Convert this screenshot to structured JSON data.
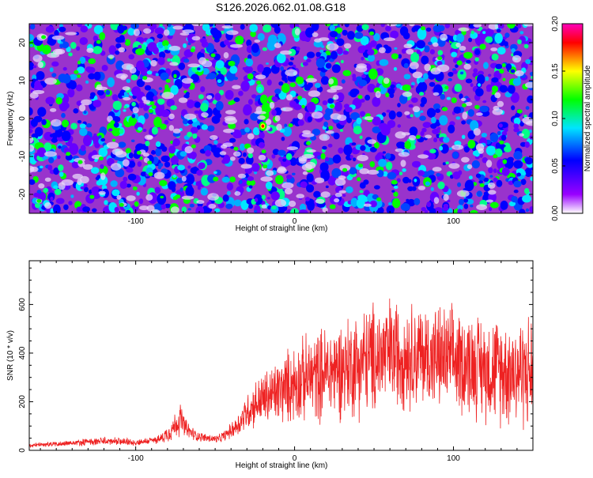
{
  "title": "S126.2026.062.01.08.G18",
  "chart_data": [
    {
      "type": "heatmap",
      "title": "S126.2026.062.01.08.G18",
      "xlabel": "Height of straight line (km)",
      "ylabel": "Frequency (Hz)",
      "xlim": [
        -167,
        150
      ],
      "ylim": [
        -25,
        25
      ],
      "x_ticks": [
        -100,
        0,
        100
      ],
      "y_ticks": [
        -20,
        -10,
        0,
        10,
        20
      ],
      "colorbar": {
        "label": "Normalized spectral amplitude",
        "range": [
          0.0,
          0.2
        ],
        "ticks": [
          "0.00",
          "0.05",
          "0.10",
          "0.15",
          "0.20"
        ],
        "colors": [
          "#ffffff",
          "#9900ff",
          "#0000ff",
          "#00e5ff",
          "#00ff00",
          "#ffff00",
          "#ff0000",
          "#ff00bb"
        ]
      },
      "peak": {
        "x": -20,
        "y": -2,
        "value": 0.2
      },
      "background_color": "#9933cc"
    },
    {
      "type": "line",
      "xlabel": "Height of straight line (km)",
      "ylabel": "SNR (10 * v/v)",
      "xlim": [
        -167,
        150
      ],
      "ylim": [
        0,
        780
      ],
      "x_ticks": [
        -100,
        0,
        100
      ],
      "y_ticks": [
        0,
        200,
        400,
        600
      ],
      "line_color": "#ee2222",
      "series": [
        {
          "name": "SNR",
          "x": [
            -167,
            -140,
            -120,
            -100,
            -85,
            -78,
            -72,
            -68,
            -62,
            -55,
            -48,
            -42,
            -35,
            -30,
            -25,
            -20,
            -10,
            0,
            10,
            20,
            30,
            40,
            50,
            60,
            70,
            80,
            90,
            100,
            110,
            120,
            130,
            140,
            150
          ],
          "y": [
            20,
            30,
            38,
            32,
            45,
            80,
            130,
            85,
            60,
            50,
            45,
            70,
            110,
            160,
            190,
            210,
            240,
            280,
            300,
            320,
            340,
            360,
            380,
            400,
            400,
            390,
            380,
            370,
            360,
            340,
            330,
            330,
            320
          ],
          "spread": [
            10,
            15,
            20,
            15,
            20,
            50,
            80,
            45,
            25,
            20,
            20,
            30,
            60,
            90,
            110,
            130,
            160,
            190,
            210,
            230,
            240,
            260,
            270,
            270,
            260,
            250,
            250,
            250,
            250,
            250,
            260,
            270,
            280
          ]
        }
      ]
    }
  ]
}
